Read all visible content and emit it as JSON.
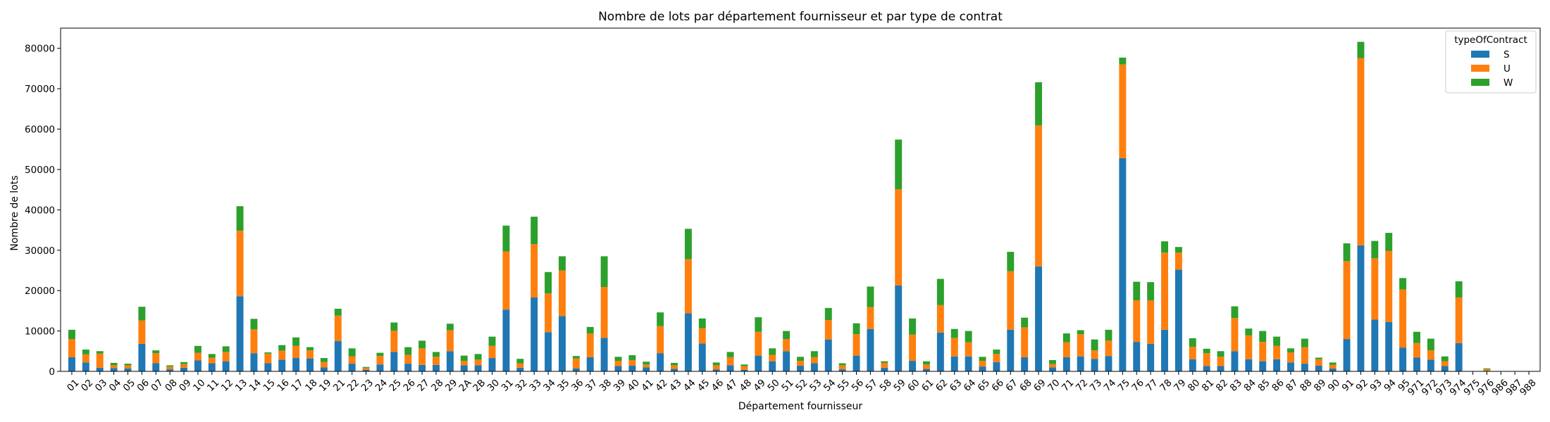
{
  "chart_data": {
    "type": "bar",
    "stacked": true,
    "title": "Nombre de lots par département fournisseur et par type de contrat",
    "xlabel": "Département fournisseur",
    "ylabel": "Nombre de lots",
    "ylim": [
      0,
      85000
    ],
    "yticks": [
      0,
      10000,
      20000,
      30000,
      40000,
      50000,
      60000,
      70000,
      80000
    ],
    "grid": false,
    "legend": {
      "title": "typeOfContract",
      "placement": "top-right"
    },
    "categories": [
      "01",
      "02",
      "03",
      "04",
      "05",
      "06",
      "07",
      "08",
      "09",
      "10",
      "11",
      "12",
      "13",
      "14",
      "15",
      "16",
      "17",
      "18",
      "19",
      "21",
      "22",
      "23",
      "24",
      "25",
      "26",
      "27",
      "28",
      "29",
      "2A",
      "2B",
      "30",
      "31",
      "32",
      "33",
      "34",
      "35",
      "36",
      "37",
      "38",
      "39",
      "40",
      "41",
      "42",
      "43",
      "44",
      "45",
      "46",
      "47",
      "48",
      "49",
      "50",
      "51",
      "52",
      "53",
      "54",
      "55",
      "56",
      "57",
      "58",
      "59",
      "60",
      "61",
      "62",
      "63",
      "64",
      "65",
      "66",
      "67",
      "68",
      "69",
      "70",
      "71",
      "72",
      "73",
      "74",
      "75",
      "76",
      "77",
      "78",
      "79",
      "80",
      "81",
      "82",
      "83",
      "84",
      "85",
      "86",
      "87",
      "88",
      "89",
      "90",
      "91",
      "92",
      "93",
      "94",
      "95",
      "971",
      "972",
      "973",
      "974",
      "975",
      "976",
      "986",
      "987",
      "988"
    ],
    "series": [
      {
        "name": "S",
        "color": "#1f77b4",
        "values": [
          3500,
          2200,
          900,
          800,
          700,
          6800,
          2000,
          500,
          900,
          2700,
          2000,
          2500,
          18600,
          4500,
          2000,
          2900,
          3300,
          3200,
          1000,
          7500,
          1900,
          400,
          1700,
          4800,
          1900,
          1600,
          1600,
          5000,
          1500,
          1500,
          3300,
          15300,
          900,
          18300,
          9700,
          13700,
          700,
          3500,
          8300,
          1300,
          1400,
          1000,
          4500,
          600,
          14400,
          6900,
          500,
          1500,
          400,
          3900,
          2500,
          5000,
          1400,
          2000,
          7900,
          500,
          3900,
          10500,
          900,
          21300,
          2600,
          600,
          9600,
          3700,
          3700,
          1200,
          2300,
          10300,
          3500,
          26000,
          1000,
          3500,
          3700,
          3100,
          3800,
          52800,
          7300,
          6800,
          10300,
          25200,
          3000,
          1300,
          1300,
          5000,
          3000,
          2500,
          3000,
          2200,
          1900,
          1400,
          700,
          8000,
          31200,
          12800,
          12200,
          5900,
          3400,
          2900,
          1300,
          7000,
          0,
          150,
          0,
          0,
          0
        ]
      },
      {
        "name": "U",
        "color": "#ff7f0e",
        "values": [
          4500,
          2000,
          3500,
          700,
          800,
          5800,
          2500,
          700,
          900,
          1900,
          1400,
          2300,
          16200,
          5900,
          2400,
          2200,
          3000,
          2000,
          1300,
          6300,
          1800,
          500,
          2100,
          5300,
          2200,
          4100,
          2000,
          5200,
          1100,
          1400,
          3000,
          14400,
          1100,
          13200,
          9600,
          11300,
          2500,
          5900,
          12600,
          1300,
          1400,
          700,
          6700,
          900,
          13400,
          3800,
          1000,
          2000,
          900,
          5900,
          1600,
          3000,
          1200,
          1500,
          4800,
          1000,
          5300,
          5400,
          1200,
          23800,
          6500,
          1100,
          6800,
          4600,
          3500,
          1400,
          2000,
          14500,
          7400,
          34900,
          800,
          3700,
          5500,
          2100,
          3800,
          23200,
          10300,
          10800,
          19100,
          4200,
          3100,
          3200,
          2300,
          8200,
          5900,
          4800,
          3300,
          2500,
          4100,
          1600,
          900,
          19300,
          46400,
          15200,
          17600,
          14400,
          3600,
          2300,
          1200,
          11300,
          0,
          400,
          0,
          0,
          0
        ]
      },
      {
        "name": "W",
        "color": "#2ca02c",
        "values": [
          2300,
          1200,
          600,
          600,
          400,
          3400,
          700,
          300,
          500,
          1700,
          900,
          1400,
          6100,
          2600,
          300,
          1400,
          2100,
          800,
          1000,
          1700,
          2000,
          200,
          800,
          2000,
          1900,
          1900,
          1200,
          1600,
          1300,
          1400,
          2300,
          6400,
          1100,
          6800,
          5300,
          3500,
          600,
          1600,
          7600,
          1000,
          1200,
          700,
          3400,
          600,
          7500,
          2400,
          700,
          1300,
          400,
          3600,
          1600,
          2000,
          1000,
          1500,
          3000,
          500,
          2700,
          5100,
          400,
          12300,
          4000,
          800,
          6500,
          2200,
          2800,
          1000,
          1100,
          4800,
          2400,
          10700,
          1000,
          2200,
          1000,
          2700,
          2700,
          1700,
          4600,
          4500,
          2800,
          1400,
          2100,
          1100,
          1400,
          2900,
          1700,
          2700,
          2300,
          1000,
          2100,
          400,
          600,
          4400,
          4000,
          4300,
          4500,
          2800,
          2800,
          2900,
          1200,
          4000,
          0,
          200,
          0,
          0,
          0
        ]
      }
    ]
  }
}
